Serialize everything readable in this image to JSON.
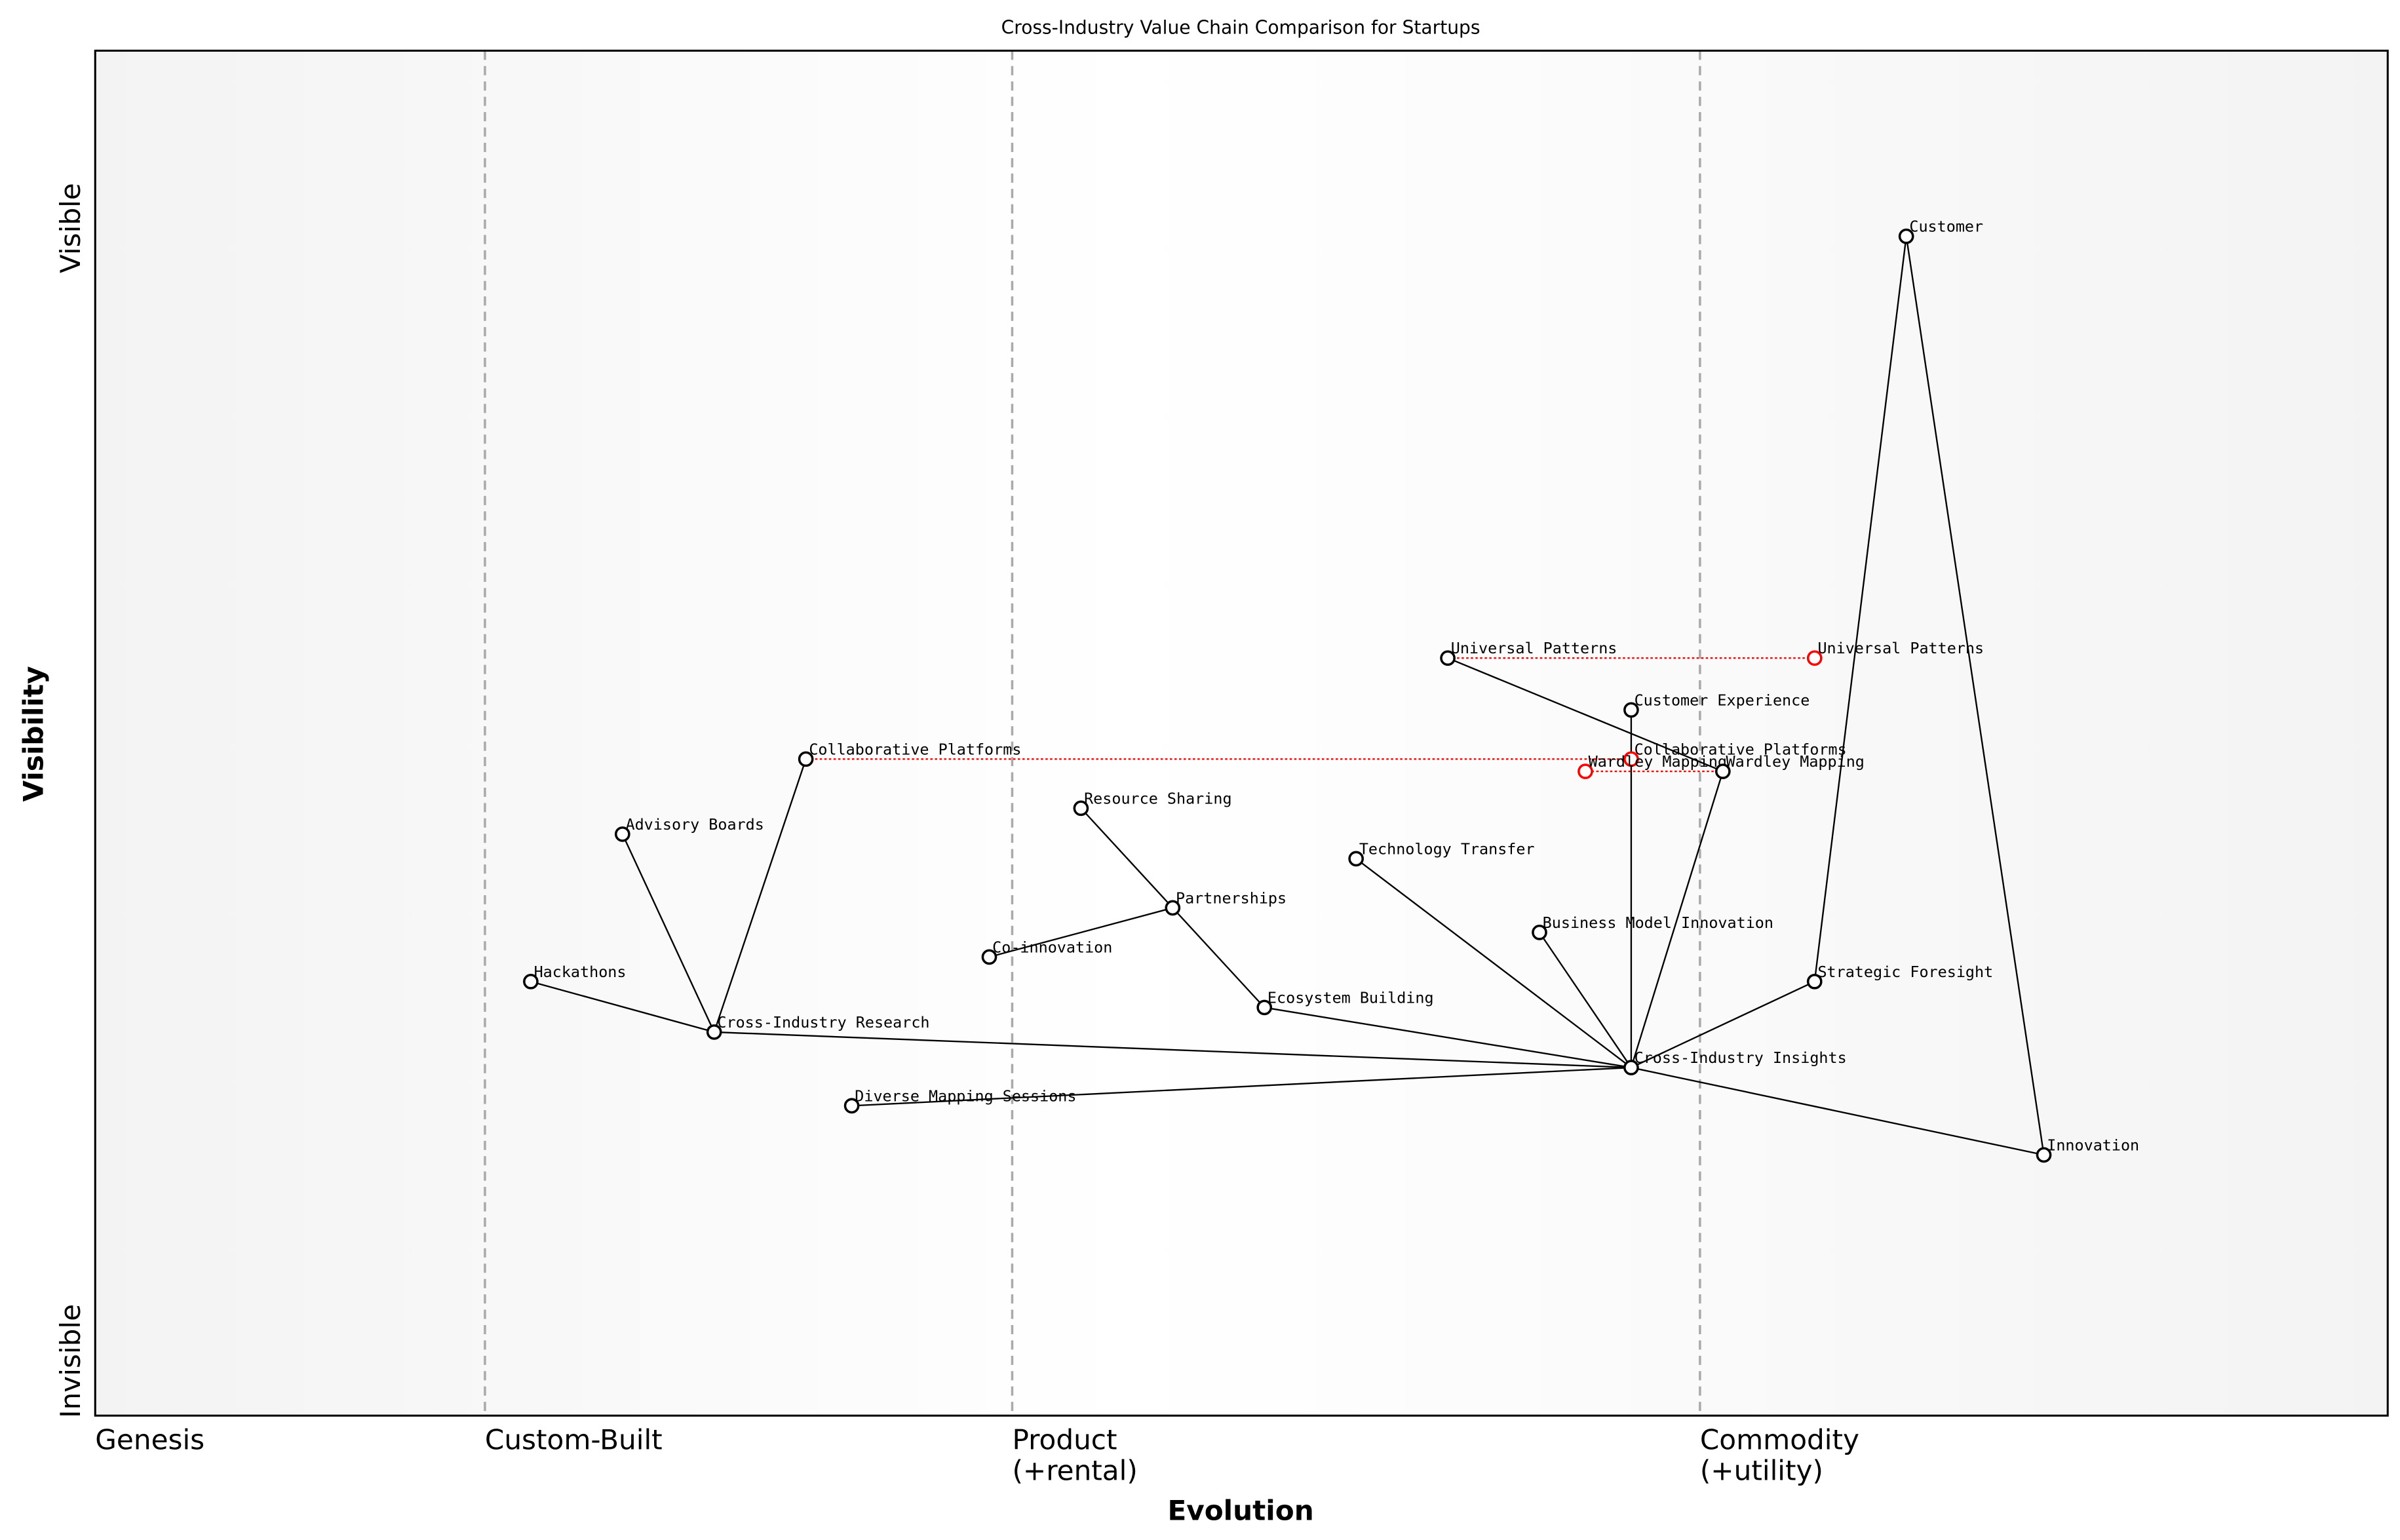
{
  "chart_data": {
    "type": "wardley-map",
    "title": "Cross-Industry Value Chain Comparison for Startups",
    "xlabel": "Evolution",
    "ylabel": "Visibility",
    "xlim": [
      0,
      1
    ],
    "ylim": [
      0,
      1
    ],
    "y_ticks": [
      {
        "label": "Visible",
        "value": 0.87
      },
      {
        "label": "Invisible",
        "value": 0.04
      }
    ],
    "stages": [
      {
        "label": "Genesis",
        "value": 0
      },
      {
        "label": "Custom-Built",
        "value": 0.17
      },
      {
        "label": "Product\n(+rental)",
        "value": 0.4
      },
      {
        "label": "Commodity\n(+utility)",
        "value": 0.7
      }
    ],
    "colors": {
      "component": "#000000",
      "evolved": "#ff0000",
      "link": "#000000",
      "stage_line": "#aaaaaa"
    },
    "components": [
      {
        "name": "Customer",
        "evolution": 0.79,
        "visibility": 0.864
      },
      {
        "name": "Universal Patterns",
        "evolution": 0.59,
        "visibility": 0.555
      },
      {
        "name": "Customer Experience",
        "evolution": 0.67,
        "visibility": 0.517
      },
      {
        "name": "Collaborative Platforms",
        "evolution": 0.31,
        "visibility": 0.481
      },
      {
        "name": "Wardley Mapping",
        "evolution": 0.71,
        "visibility": 0.472
      },
      {
        "name": "Resource Sharing",
        "evolution": 0.43,
        "visibility": 0.445
      },
      {
        "name": "Advisory Boards",
        "evolution": 0.23,
        "visibility": 0.426
      },
      {
        "name": "Technology Transfer",
        "evolution": 0.55,
        "visibility": 0.408
      },
      {
        "name": "Partnerships",
        "evolution": 0.47,
        "visibility": 0.372
      },
      {
        "name": "Business Model Innovation",
        "evolution": 0.63,
        "visibility": 0.354
      },
      {
        "name": "Co-innovation",
        "evolution": 0.39,
        "visibility": 0.336
      },
      {
        "name": "Hackathons",
        "evolution": 0.19,
        "visibility": 0.318
      },
      {
        "name": "Strategic Foresight",
        "evolution": 0.75,
        "visibility": 0.318
      },
      {
        "name": "Ecosystem Building",
        "evolution": 0.51,
        "visibility": 0.299
      },
      {
        "name": "Cross-Industry Research",
        "evolution": 0.27,
        "visibility": 0.281
      },
      {
        "name": "Cross-Industry Insights",
        "evolution": 0.67,
        "visibility": 0.255
      },
      {
        "name": "Diverse Mapping Sessions",
        "evolution": 0.33,
        "visibility": 0.227
      },
      {
        "name": "Innovation",
        "evolution": 0.85,
        "visibility": 0.191
      }
    ],
    "evolutions": [
      {
        "name": "Universal Patterns",
        "to": 0.75
      },
      {
        "name": "Collaborative Platforms",
        "to": 0.67
      },
      {
        "name": "Wardley Mapping",
        "to": 0.65
      }
    ],
    "links": [
      [
        "Customer",
        "Strategic Foresight"
      ],
      [
        "Customer",
        "Innovation"
      ],
      [
        "Universal Patterns",
        "Wardley Mapping"
      ],
      [
        "Customer Experience",
        "Cross-Industry Insights"
      ],
      [
        "Wardley Mapping",
        "Cross-Industry Insights"
      ],
      [
        "Technology Transfer",
        "Cross-Industry Insights"
      ],
      [
        "Business Model Innovation",
        "Cross-Industry Insights"
      ],
      [
        "Strategic Foresight",
        "Cross-Industry Insights"
      ],
      [
        "Innovation",
        "Cross-Industry Insights"
      ],
      [
        "Ecosystem Building",
        "Cross-Industry Insights"
      ],
      [
        "Cross-Industry Research",
        "Cross-Industry Insights"
      ],
      [
        "Diverse Mapping Sessions",
        "Cross-Industry Insights"
      ],
      [
        "Resource Sharing",
        "Partnerships"
      ],
      [
        "Partnerships",
        "Ecosystem Building"
      ],
      [
        "Co-innovation",
        "Partnerships"
      ],
      [
        "Advisory Boards",
        "Cross-Industry Research"
      ],
      [
        "Collaborative Platforms",
        "Cross-Industry Research"
      ],
      [
        "Hackathons",
        "Cross-Industry Research"
      ]
    ]
  }
}
